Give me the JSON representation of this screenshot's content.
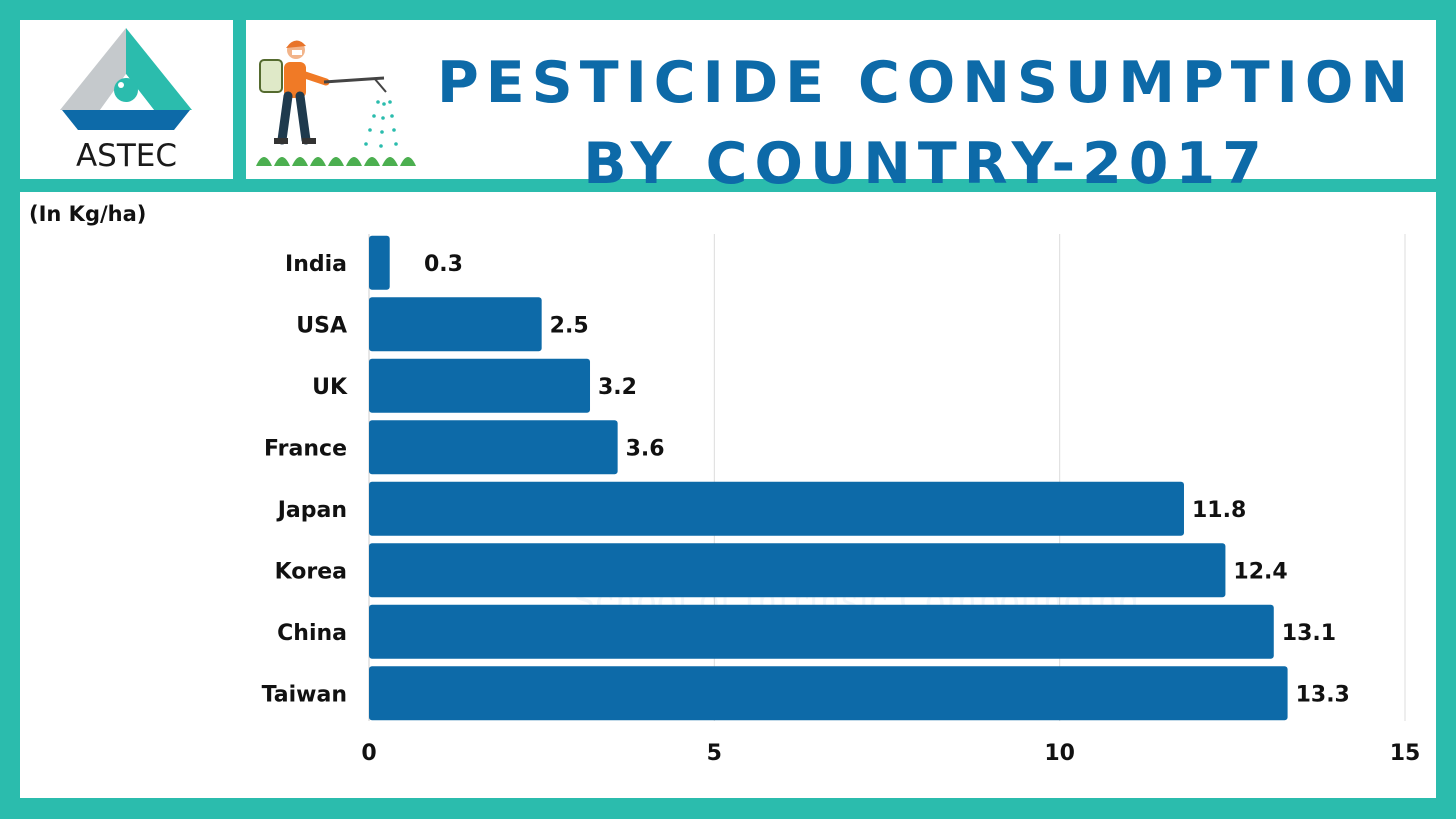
{
  "header": {
    "logo_text": "ASTEC",
    "title_line_1": "PESTICIDE CONSUMPTION",
    "title_line_2": "BY COUNTRY-2017"
  },
  "watermark": "School of Intrinsic Compounding",
  "colors": {
    "frame": "#2bbcad",
    "bar": "#0d6aa8",
    "title": "#0d6aa8",
    "logo_gray": "#c5c9cc",
    "logo_teal": "#2bbcad",
    "logo_blue": "#0d6aa8"
  },
  "chart_data": {
    "type": "bar",
    "orientation": "horizontal",
    "ylabel": "(In Kg/ha)",
    "categories": [
      "India",
      "USA",
      "UK",
      "France",
      "Japan",
      "Korea",
      "China",
      "Taiwan"
    ],
    "values": [
      0.3,
      2.5,
      3.2,
      3.6,
      11.8,
      12.4,
      13.1,
      13.3
    ],
    "value_labels": [
      "0.3",
      "2.5",
      "3.2",
      "3.6",
      "11.8",
      "12.4",
      "13.1",
      "13.3"
    ],
    "xlim": [
      0,
      15
    ],
    "xticks": [
      0,
      5,
      10,
      15
    ],
    "grid": true,
    "legend": "none"
  }
}
